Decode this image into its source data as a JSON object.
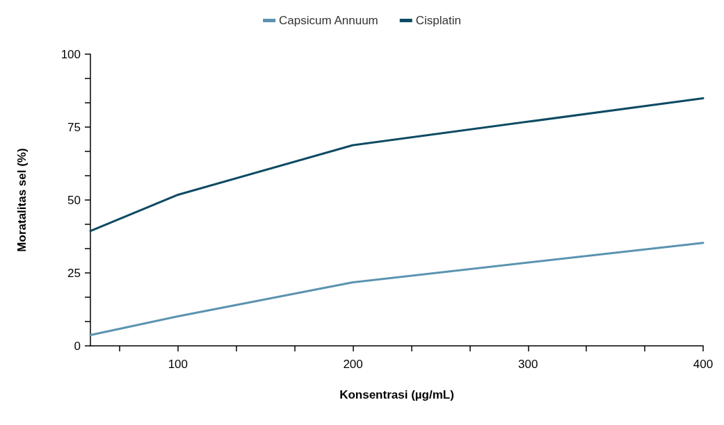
{
  "chart_data": {
    "type": "line",
    "xlabel": "Konsentrasi (µg/mL)",
    "ylabel": "Moratalitas sel (%)",
    "x": [
      50,
      100,
      200,
      400
    ],
    "series": [
      {
        "name": "Capsicum Annuum",
        "color": "#5b93b0",
        "values": [
          3.7,
          10.1,
          21.8,
          35.3
        ]
      },
      {
        "name": "Cisplatin",
        "color": "#0d4a63",
        "values": [
          39.4,
          51.8,
          68.8,
          84.9
        ]
      }
    ],
    "xlim": [
      50,
      400
    ],
    "xticks": [
      {
        "value": 66.67,
        "label": null
      },
      100,
      {
        "value": 133.33,
        "label": null
      },
      {
        "value": 166.67,
        "label": null
      },
      200,
      {
        "value": 233.33,
        "label": null
      },
      {
        "value": 266.67,
        "label": null
      },
      300,
      {
        "value": 333.33,
        "label": null
      },
      {
        "value": 366.67,
        "label": null
      },
      400
    ],
    "ylim": [
      0,
      100
    ],
    "yticks": [
      0,
      {
        "value": 8.33,
        "label": null
      },
      {
        "value": 16.67,
        "label": null
      },
      25,
      {
        "value": 33.33,
        "label": null
      },
      {
        "value": 41.67,
        "label": null
      },
      50,
      {
        "value": 58.33,
        "label": null
      },
      {
        "value": 66.67,
        "label": null
      },
      75,
      {
        "value": 83.33,
        "label": null
      },
      {
        "value": 91.67,
        "label": null
      },
      100
    ],
    "grid": false,
    "legend": "top",
    "marker": "none",
    "line_style": "solid"
  }
}
